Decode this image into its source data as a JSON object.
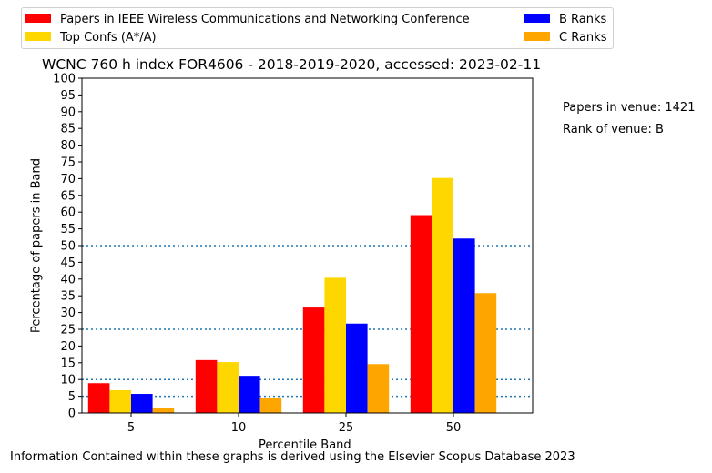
{
  "chart_data": {
    "type": "bar",
    "title": "WCNC 760 h index FOR4606 - 2018-2019-2020, accessed: 2023-02-11",
    "xlabel": "Percentile Band",
    "ylabel": "Percentage of papers in Band",
    "categories": [
      "5",
      "10",
      "25",
      "50"
    ],
    "ylim": [
      0,
      100
    ],
    "yticks": [
      0,
      5,
      10,
      15,
      20,
      25,
      30,
      35,
      40,
      45,
      50,
      55,
      60,
      65,
      70,
      75,
      80,
      85,
      90,
      95,
      100
    ],
    "reference_lines": [
      5,
      10,
      25,
      50
    ],
    "reference_line_color": "#1f77b4",
    "legend_placement": "top",
    "grid": false,
    "series": [
      {
        "name": "Papers in IEEE Wireless Communications and Networking Conference",
        "color": "#ff0000",
        "values": [
          8.9,
          15.8,
          31.5,
          59.1
        ]
      },
      {
        "name": "Top Confs (A*/A)",
        "color": "#ffd700",
        "values": [
          6.8,
          15.2,
          40.4,
          70.2
        ]
      },
      {
        "name": "B Ranks",
        "color": "#0000ff",
        "values": [
          5.7,
          11.1,
          26.7,
          52.1
        ]
      },
      {
        "name": "C Ranks",
        "color": "#ffa500",
        "values": [
          1.4,
          4.4,
          14.6,
          35.8
        ]
      }
    ]
  },
  "annotations": {
    "papers_in_venue": "Papers in venue: 1421",
    "rank_of_venue": "Rank of venue: B",
    "footer": "Information Contained within these graphs is derived using the Elsevier Scopus Database 2023"
  }
}
